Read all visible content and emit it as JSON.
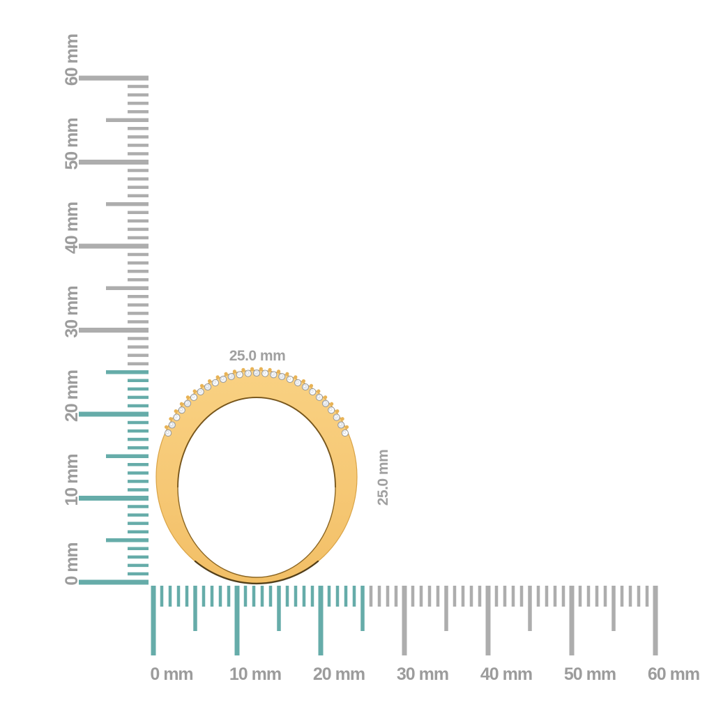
{
  "image": {
    "background": "#FFFFFF",
    "description": "Gold band ring with a single row of pave diamonds shown against vertical and horizontal millimeter rulers"
  },
  "unit": "mm",
  "dimension_labels": {
    "width": "25.0 mm",
    "height": "25.0 mm"
  },
  "measurements": {
    "ring_width_mm": 25.0,
    "ring_height_mm": 25.0
  },
  "rulers": {
    "highlight_range_mm": [
      0,
      25
    ],
    "colors": {
      "highlight_tick": "#66ACA9",
      "default_tick": "#ADADAD",
      "label_text": "#9C9C9C",
      "dimension_label_text": "#A0A0A0"
    },
    "vertical": {
      "side": "left",
      "range_mm": [
        0,
        60
      ],
      "minor_step_mm": 1,
      "half_step_mm": 5,
      "major_step_mm": 10,
      "labels": [
        "0 mm",
        "10 mm",
        "20 mm",
        "30 mm",
        "40 mm",
        "50 mm",
        "60 mm"
      ]
    },
    "horizontal": {
      "side": "bottom",
      "range_mm": [
        0,
        60
      ],
      "minor_step_mm": 1,
      "half_step_mm": 5,
      "major_step_mm": 10,
      "labels": [
        "0 mm",
        "10 mm",
        "20 mm",
        "30 mm",
        "40 mm",
        "50 mm",
        "60 mm"
      ]
    }
  },
  "object": {
    "name": "gold band ring with diamond row",
    "diamond_count": 27,
    "colors": {
      "gold": "#F6C875",
      "gold_light": "#F9D182",
      "gold_deep": "#F2BF66",
      "gold_edge": "#D9A346",
      "outline_dark": "#3A2A0C",
      "inner_edge": "#8A6523",
      "inner_edge_dark": "#6E4E16",
      "diamond_fill": "#F2F3F5",
      "diamond_edge": "#8F9296",
      "diamond_facet_edge": "#C3C9CF",
      "prong_gold": "#E8B356"
    }
  }
}
